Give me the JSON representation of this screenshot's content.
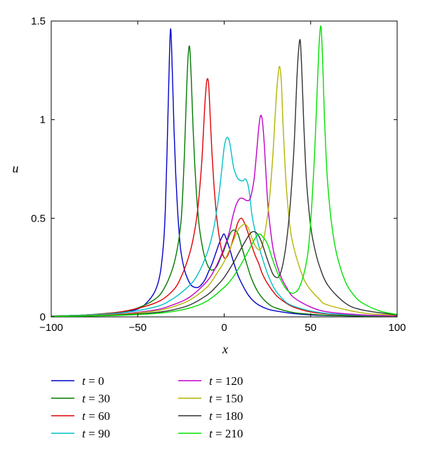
{
  "chart_data": {
    "type": "line",
    "title": "",
    "xlabel": "x",
    "ylabel": "u",
    "xlim": [
      -100,
      100
    ],
    "ylim": [
      0,
      1.5
    ],
    "x_ticks": [
      -100,
      -50,
      0,
      50,
      100
    ],
    "x_tick_labels": [
      "−100",
      "−50",
      "0",
      "50",
      "100"
    ],
    "y_ticks": [
      0,
      0.5,
      1,
      1.5
    ],
    "y_tick_labels": [
      "0",
      "0.5",
      "1",
      "1.5"
    ],
    "grid": false,
    "legend": {
      "placement": "below",
      "entries": [
        {
          "var": "t",
          "eq": " = ",
          "val": "0"
        },
        {
          "var": "t",
          "eq": " = ",
          "val": "30"
        },
        {
          "var": "t",
          "eq": " = ",
          "val": "60"
        },
        {
          "var": "t",
          "eq": " = ",
          "val": "90"
        },
        {
          "var": "t",
          "eq": " = ",
          "val": "120"
        },
        {
          "var": "t",
          "eq": " = ",
          "val": "150"
        },
        {
          "var": "t",
          "eq": " = ",
          "val": "180"
        },
        {
          "var": "t",
          "eq": " = ",
          "val": "210"
        }
      ]
    },
    "series": [
      {
        "name": "t = 0",
        "color": "#0000c8",
        "x": [
          -100,
          -80,
          -60,
          -50,
          -45,
          -40,
          -37,
          -35,
          -34,
          -33,
          -32,
          -31,
          -30,
          -29,
          -28,
          -27,
          -26,
          -25,
          -23,
          -21,
          -19,
          -17,
          -15,
          -13,
          -11,
          -9,
          -7,
          -5,
          -3,
          -1,
          0,
          1,
          3,
          5,
          8,
          11,
          14,
          17,
          20,
          25,
          30,
          40,
          50,
          60,
          80,
          100
        ],
        "y": [
          0.003,
          0.008,
          0.02,
          0.04,
          0.07,
          0.13,
          0.22,
          0.38,
          0.55,
          0.85,
          1.2,
          1.46,
          1.25,
          0.95,
          0.72,
          0.55,
          0.42,
          0.33,
          0.24,
          0.19,
          0.16,
          0.15,
          0.15,
          0.165,
          0.19,
          0.23,
          0.27,
          0.32,
          0.37,
          0.41,
          0.42,
          0.4,
          0.35,
          0.29,
          0.21,
          0.155,
          0.11,
          0.08,
          0.06,
          0.04,
          0.03,
          0.017,
          0.01,
          0.007,
          0.004,
          0.002
        ]
      },
      {
        "name": "t = 30",
        "color": "#007a00",
        "x": [
          -100,
          -80,
          -60,
          -50,
          -40,
          -35,
          -30,
          -27,
          -25,
          -24,
          -23,
          -22,
          -21,
          -20,
          -19,
          -18,
          -17,
          -16,
          -15,
          -14,
          -12,
          -10,
          -8,
          -6,
          -4,
          -2,
          0,
          2,
          4,
          6,
          8,
          10,
          13,
          16,
          20,
          25,
          30,
          40,
          50,
          60,
          80,
          100
        ],
        "y": [
          0.004,
          0.01,
          0.025,
          0.045,
          0.09,
          0.14,
          0.24,
          0.35,
          0.48,
          0.62,
          0.82,
          1.08,
          1.3,
          1.37,
          1.2,
          0.96,
          0.77,
          0.62,
          0.51,
          0.43,
          0.33,
          0.27,
          0.24,
          0.24,
          0.26,
          0.3,
          0.34,
          0.39,
          0.43,
          0.44,
          0.42,
          0.36,
          0.27,
          0.19,
          0.12,
          0.07,
          0.045,
          0.022,
          0.013,
          0.008,
          0.004,
          0.003
        ]
      },
      {
        "name": "t = 60",
        "color": "#e00000",
        "x": [
          -100,
          -80,
          -60,
          -40,
          -30,
          -25,
          -20,
          -17,
          -15,
          -13,
          -12,
          -11,
          -10,
          -9,
          -8,
          -7,
          -6,
          -5,
          -4,
          -2,
          0,
          2,
          4,
          6,
          8,
          10,
          12,
          14,
          16,
          18,
          20,
          22,
          25,
          30,
          35,
          40,
          50,
          60,
          80,
          100
        ],
        "y": [
          0.004,
          0.01,
          0.025,
          0.07,
          0.13,
          0.2,
          0.32,
          0.44,
          0.57,
          0.78,
          0.94,
          1.1,
          1.2,
          1.18,
          1.0,
          0.82,
          0.68,
          0.57,
          0.48,
          0.36,
          0.3,
          0.31,
          0.36,
          0.42,
          0.48,
          0.5,
          0.47,
          0.42,
          0.36,
          0.31,
          0.27,
          0.22,
          0.17,
          0.11,
          0.075,
          0.05,
          0.025,
          0.015,
          0.007,
          0.004
        ]
      },
      {
        "name": "t = 90",
        "color": "#00c0c8",
        "x": [
          -100,
          -80,
          -60,
          -40,
          -30,
          -20,
          -15,
          -10,
          -7,
          -5,
          -3,
          -1,
          0,
          1,
          2,
          3,
          4,
          5,
          6,
          8,
          10,
          11,
          12,
          13,
          14,
          15,
          16,
          18,
          20,
          22,
          25,
          28,
          30,
          35,
          40,
          50,
          60,
          80,
          100
        ],
        "y": [
          0.004,
          0.01,
          0.02,
          0.05,
          0.09,
          0.16,
          0.22,
          0.32,
          0.41,
          0.5,
          0.62,
          0.78,
          0.86,
          0.9,
          0.91,
          0.89,
          0.84,
          0.78,
          0.74,
          0.7,
          0.69,
          0.69,
          0.7,
          0.69,
          0.66,
          0.6,
          0.52,
          0.43,
          0.36,
          0.3,
          0.22,
          0.16,
          0.13,
          0.08,
          0.055,
          0.03,
          0.017,
          0.008,
          0.005
        ]
      },
      {
        "name": "t = 120",
        "color": "#c000c8",
        "x": [
          -100,
          -80,
          -60,
          -40,
          -30,
          -20,
          -10,
          -5,
          0,
          3,
          5,
          7,
          9,
          11,
          13,
          15,
          17,
          18,
          19,
          20,
          21,
          22,
          23,
          24,
          25,
          26,
          28,
          30,
          33,
          36,
          40,
          50,
          60,
          80,
          100
        ],
        "y": [
          0.003,
          0.007,
          0.015,
          0.035,
          0.06,
          0.1,
          0.18,
          0.25,
          0.35,
          0.43,
          0.51,
          0.57,
          0.6,
          0.6,
          0.59,
          0.6,
          0.68,
          0.76,
          0.86,
          0.96,
          1.02,
          1.0,
          0.9,
          0.75,
          0.6,
          0.5,
          0.36,
          0.28,
          0.2,
          0.15,
          0.1,
          0.05,
          0.025,
          0.01,
          0.005
        ]
      },
      {
        "name": "t = 150",
        "color": "#b4b400",
        "x": [
          -100,
          -80,
          -60,
          -40,
          -30,
          -20,
          -10,
          -5,
          0,
          4,
          8,
          10,
          12,
          14,
          16,
          18,
          20,
          22,
          24,
          26,
          28,
          29,
          30,
          31,
          32,
          33,
          34,
          35,
          36,
          38,
          40,
          44,
          48,
          55,
          60,
          80,
          100
        ],
        "y": [
          0.003,
          0.007,
          0.013,
          0.03,
          0.05,
          0.085,
          0.15,
          0.21,
          0.28,
          0.36,
          0.44,
          0.46,
          0.47,
          0.45,
          0.4,
          0.36,
          0.34,
          0.36,
          0.45,
          0.58,
          0.8,
          0.95,
          1.1,
          1.21,
          1.27,
          1.2,
          0.98,
          0.8,
          0.65,
          0.46,
          0.36,
          0.24,
          0.16,
          0.09,
          0.06,
          0.02,
          0.008
        ]
      },
      {
        "name": "t = 180",
        "color": "#323232",
        "x": [
          -100,
          -80,
          -60,
          -40,
          -30,
          -20,
          -10,
          -5,
          0,
          5,
          10,
          14,
          16,
          18,
          20,
          22,
          25,
          28,
          30,
          32,
          34,
          36,
          38,
          40,
          41,
          42,
          43,
          44,
          45,
          46,
          47,
          48,
          50,
          52,
          55,
          60,
          70,
          80,
          100
        ],
        "y": [
          0.003,
          0.005,
          0.01,
          0.022,
          0.035,
          0.06,
          0.11,
          0.15,
          0.2,
          0.27,
          0.35,
          0.41,
          0.43,
          0.43,
          0.41,
          0.37,
          0.29,
          0.22,
          0.2,
          0.21,
          0.27,
          0.38,
          0.55,
          0.8,
          0.98,
          1.2,
          1.35,
          1.4,
          1.22,
          0.98,
          0.78,
          0.64,
          0.46,
          0.36,
          0.26,
          0.16,
          0.07,
          0.035,
          0.01
        ]
      },
      {
        "name": "t = 210",
        "color": "#00e000",
        "x": [
          -100,
          -80,
          -60,
          -40,
          -30,
          -20,
          -10,
          0,
          5,
          10,
          15,
          18,
          20,
          22,
          25,
          28,
          32,
          36,
          40,
          44,
          48,
          50,
          52,
          53,
          54,
          55,
          56,
          57,
          58,
          59,
          60,
          62,
          65,
          70,
          75,
          80,
          90,
          100
        ],
        "y": [
          0.002,
          0.004,
          0.008,
          0.017,
          0.027,
          0.045,
          0.08,
          0.15,
          0.2,
          0.27,
          0.35,
          0.4,
          0.42,
          0.41,
          0.37,
          0.29,
          0.2,
          0.14,
          0.12,
          0.16,
          0.3,
          0.48,
          0.78,
          0.98,
          1.2,
          1.4,
          1.47,
          1.28,
          1.0,
          0.8,
          0.66,
          0.48,
          0.32,
          0.18,
          0.11,
          0.07,
          0.03,
          0.012
        ]
      }
    ]
  }
}
